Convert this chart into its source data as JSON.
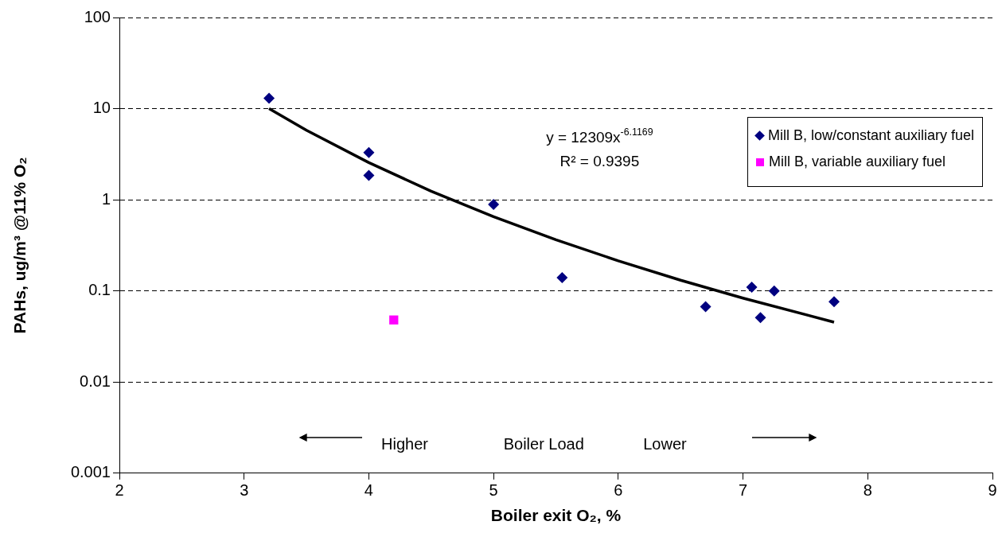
{
  "chart_data": {
    "type": "scatter",
    "xlabel": "Boiler exit O₂, %",
    "ylabel": "PAHs, ug/m³ @11% O₂",
    "log": "y",
    "grid": "y",
    "legend": "top right",
    "xlim": [
      2,
      9
    ],
    "xticks": [
      2,
      3,
      4,
      5,
      6,
      7,
      8,
      9
    ],
    "ylim": [
      0.001,
      100
    ],
    "yticks": [
      0.001,
      0.01,
      0.1,
      1,
      10,
      100
    ],
    "series": [
      {
        "name": "Mill B, low/constant auxiliary fuel",
        "color": "#000080",
        "marker": "diamond",
        "x": [
          3.2,
          4.0,
          4.0,
          5.0,
          5.55,
          6.7,
          7.07,
          7.14,
          7.25,
          7.73
        ],
        "values": [
          13,
          3.3,
          1.85,
          0.89,
          0.14,
          0.067,
          0.11,
          0.051,
          0.1,
          0.076
        ]
      },
      {
        "name": "Mill B, variable auxiliary fuel",
        "color": "#ff00ff",
        "marker": "square",
        "x": [
          4.2
        ],
        "values": [
          0.048
        ]
      },
      {
        "type": "line",
        "color": "#000000",
        "marker": "none",
        "line_style": "solid",
        "x": [
          3.2,
          3.5,
          4.0,
          4.5,
          5.0,
          5.5,
          6.0,
          6.5,
          7.0,
          7.73
        ],
        "values": [
          10.0,
          5.79,
          2.56,
          1.24,
          0.653,
          0.364,
          0.214,
          0.131,
          0.0833,
          0.0454
        ]
      }
    ],
    "annotations": [
      "y = 12309x$^{-6.1169}$",
      "R² = 0.9395",
      "Higher",
      "Boiler Load",
      "Lower"
    ]
  }
}
